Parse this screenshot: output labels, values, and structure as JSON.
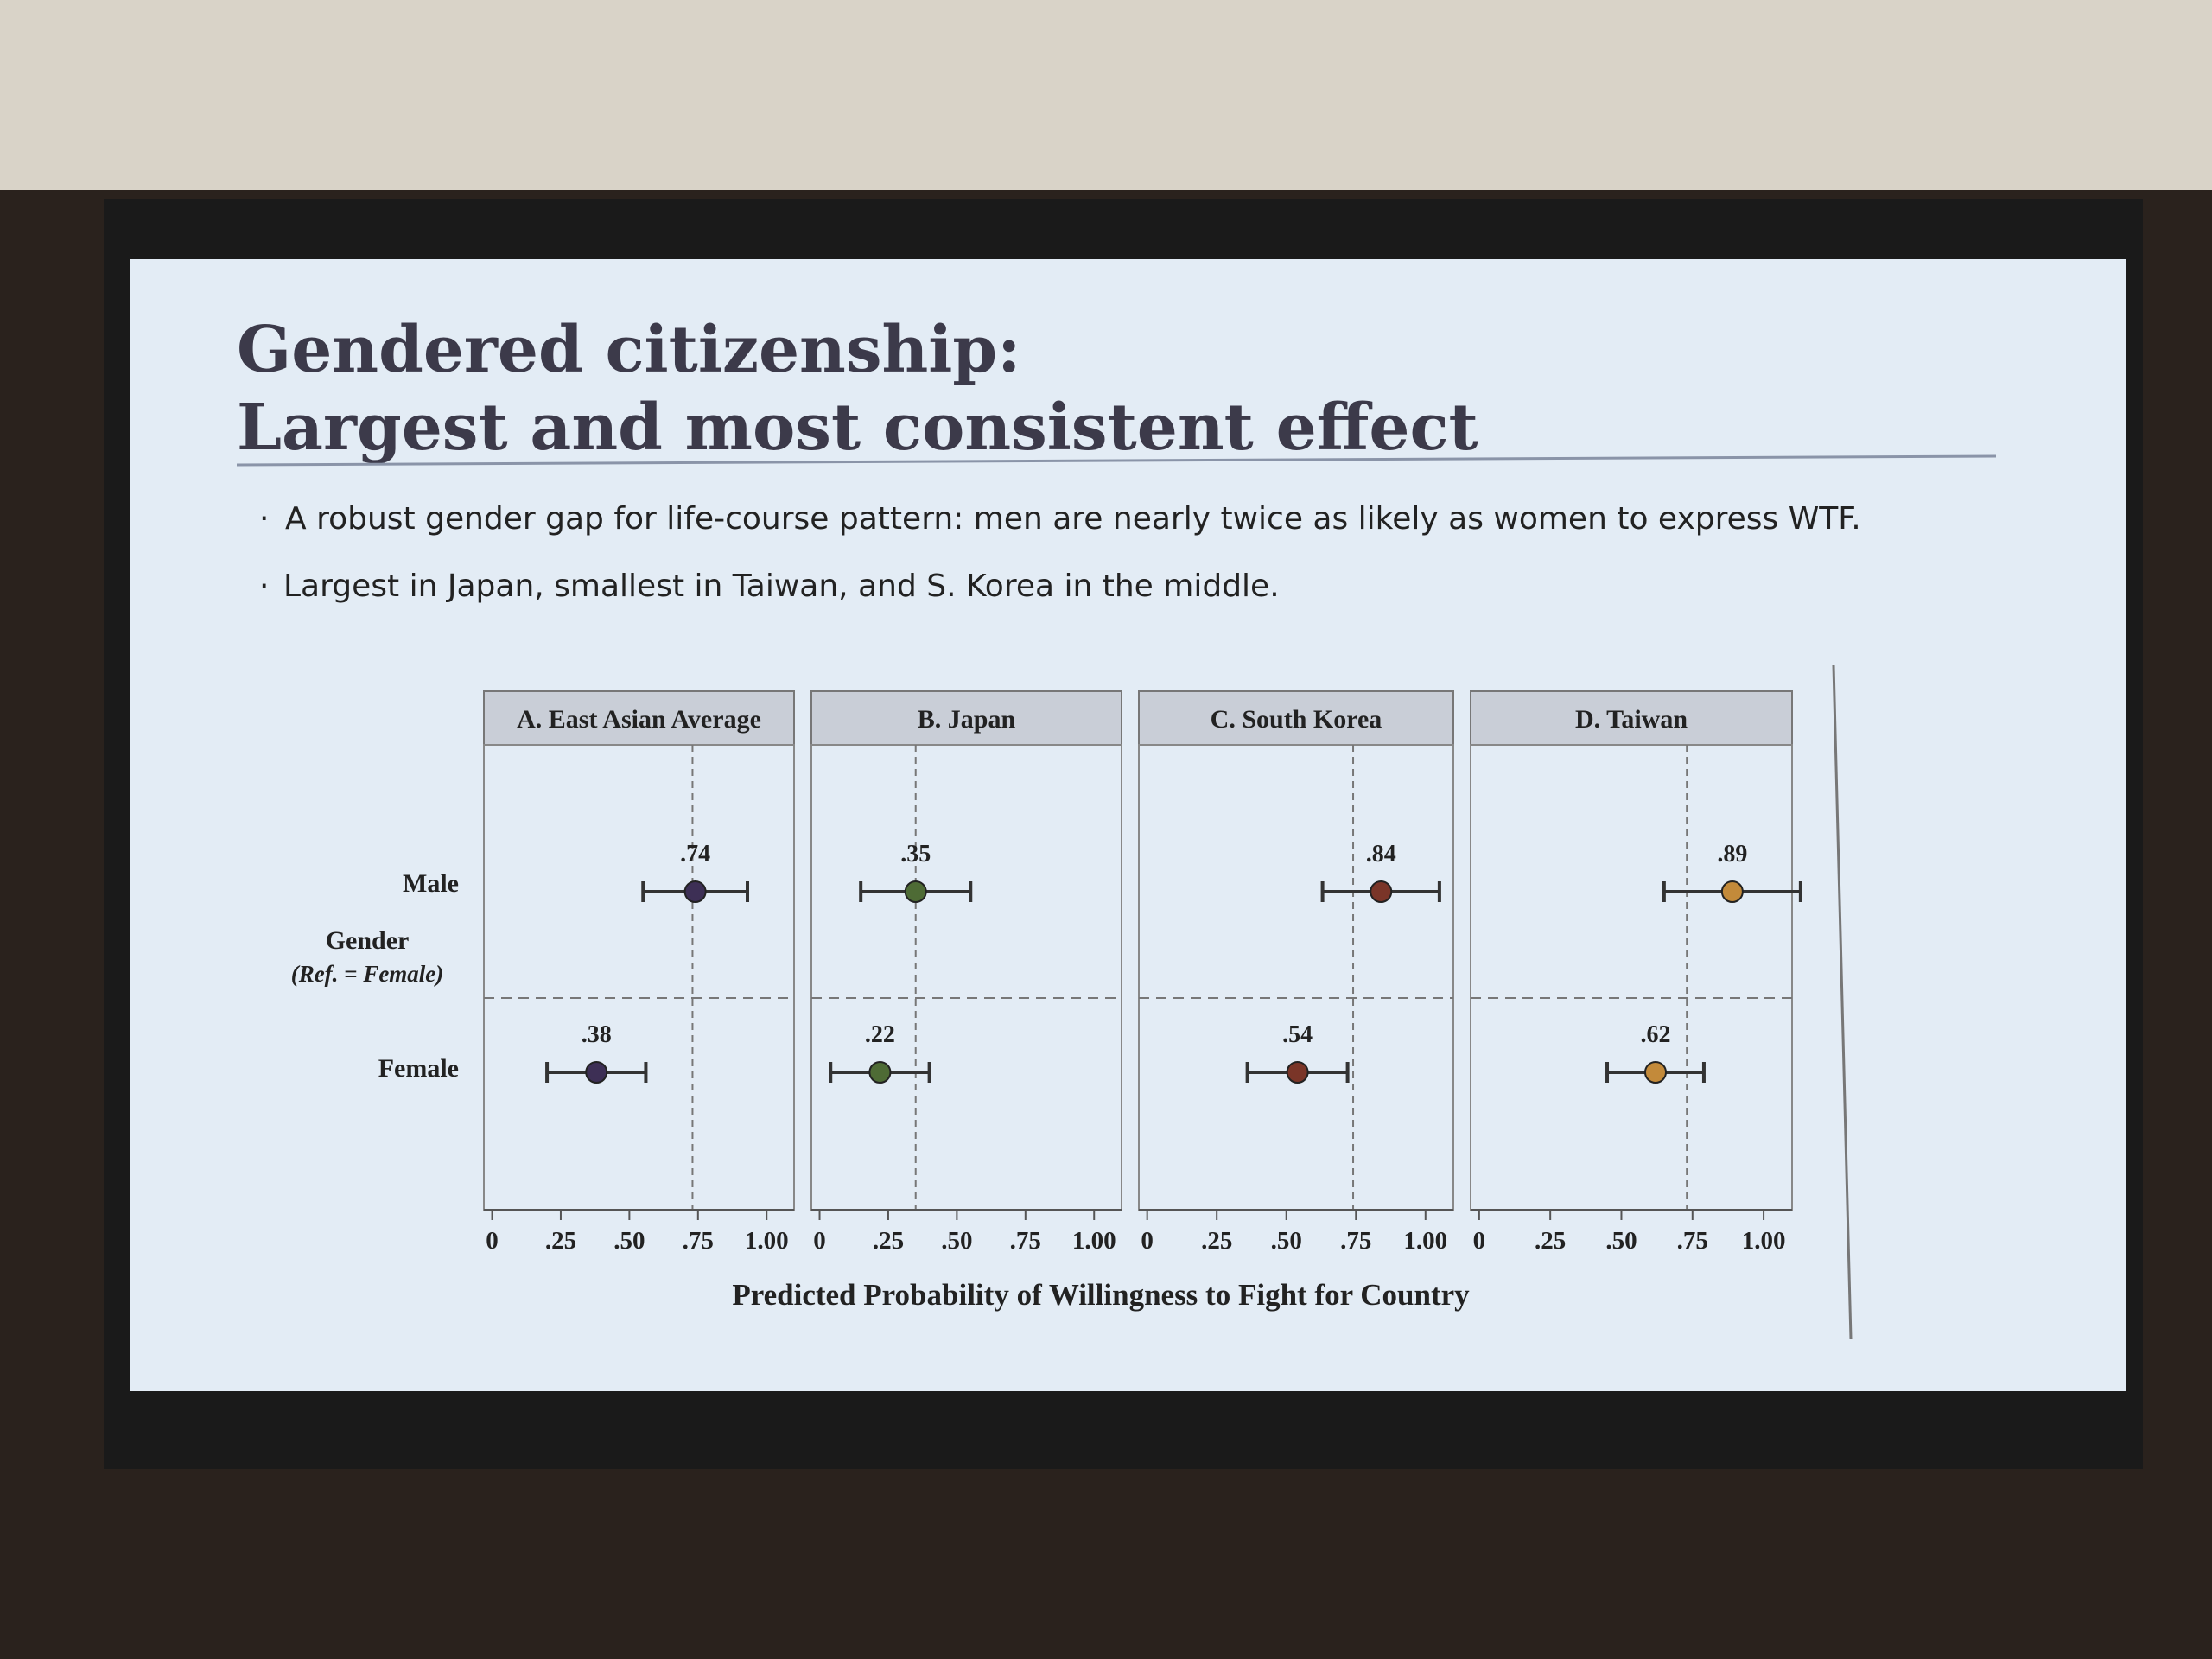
{
  "title": [
    "Gendered citizenship:",
    "Largest and most consistent effect"
  ],
  "bullets": [
    "A robust gender gap for life-course pattern: men are nearly twice as likely as women to express WTF.",
    "Largest in Japan, smallest in Taiwan, and S. Korea in the middle."
  ],
  "shared": {
    "categories": [
      "Male",
      "Female"
    ],
    "ylabel": "Gender",
    "ylabel_note": "(Ref. = Female)",
    "xlabel": "Predicted Probability of Willingness to Fight for Country"
  },
  "chart_data": [
    {
      "type": "dot-whisker",
      "title": "A. East Asian Average",
      "values": [
        0.74,
        0.38
      ],
      "value_labels": [
        ".74",
        ".38"
      ],
      "errors": [
        0.19,
        0.18
      ],
      "color": "#3d2f55",
      "refline": 0.73,
      "xlim": [
        -0.03,
        1.1
      ],
      "xticks": [
        0,
        {
          "value": 0.25,
          "label": ".25"
        },
        {
          "value": 0.5,
          "label": ".50"
        },
        {
          "value": 0.75,
          "label": ".75"
        },
        {
          "value": 1,
          "label": "1.00"
        }
      ]
    },
    {
      "type": "dot-whisker",
      "title": "B. Japan",
      "values": [
        0.35,
        0.22
      ],
      "value_labels": [
        ".35",
        ".22"
      ],
      "errors": [
        0.2,
        0.18
      ],
      "color": "#4e6b35",
      "refline": 0.35,
      "xlim": [
        -0.03,
        1.1
      ],
      "xticks": [
        0,
        {
          "value": 0.25,
          "label": ".25"
        },
        {
          "value": 0.5,
          "label": ".50"
        },
        {
          "value": 0.75,
          "label": ".75"
        },
        {
          "value": 1,
          "label": "1.00"
        }
      ]
    },
    {
      "type": "dot-whisker",
      "title": "C. South Korea",
      "values": [
        0.84,
        0.54
      ],
      "value_labels": [
        ".84",
        ".54"
      ],
      "errors": [
        0.21,
        0.18
      ],
      "color": "#7a3528",
      "refline": 0.74,
      "xlim": [
        -0.03,
        1.1
      ],
      "xticks": [
        0,
        {
          "value": 0.25,
          "label": ".25"
        },
        {
          "value": 0.5,
          "label": ".50"
        },
        {
          "value": 0.75,
          "label": ".75"
        },
        {
          "value": 1,
          "label": "1.00"
        }
      ]
    },
    {
      "type": "dot-whisker",
      "title": "D. Taiwan",
      "values": [
        0.89,
        0.62
      ],
      "value_labels": [
        ".89",
        ".62"
      ],
      "errors": [
        0.24,
        0.17
      ],
      "color": "#c38a3a",
      "refline": 0.73,
      "xlim": [
        -0.03,
        1.1
      ],
      "xticks": [
        0,
        {
          "value": 0.25,
          "label": ".25"
        },
        {
          "value": 0.5,
          "label": ".50"
        },
        {
          "value": 0.75,
          "label": ".75"
        },
        {
          "value": 1,
          "label": "1.00"
        }
      ]
    }
  ]
}
